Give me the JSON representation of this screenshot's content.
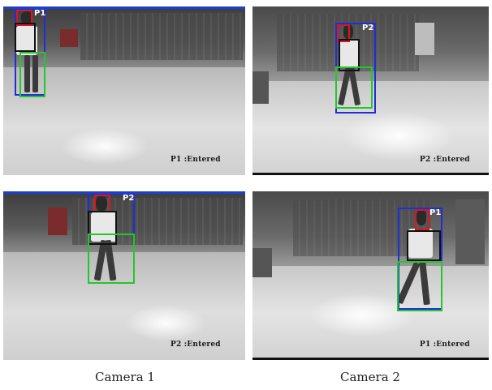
{
  "frames": [
    {
      "id": "cam1-top",
      "person_tag": "P1",
      "status": "P1 :Entered"
    },
    {
      "id": "cam2-top",
      "person_tag": "P2",
      "status": "P2 :Entered"
    },
    {
      "id": "cam1-bottom",
      "person_tag": "P2",
      "status": "P2 :Entered"
    },
    {
      "id": "cam2-bottom",
      "person_tag": "P1",
      "status": "P1 :Entered"
    }
  ],
  "captions": {
    "left": "Camera 1",
    "right": "Camera 2"
  },
  "colors": {
    "track_box": "#1f2fd6",
    "head_box": "#e0141c",
    "torso_box": "#111111",
    "legs_box": "#22c72a"
  }
}
